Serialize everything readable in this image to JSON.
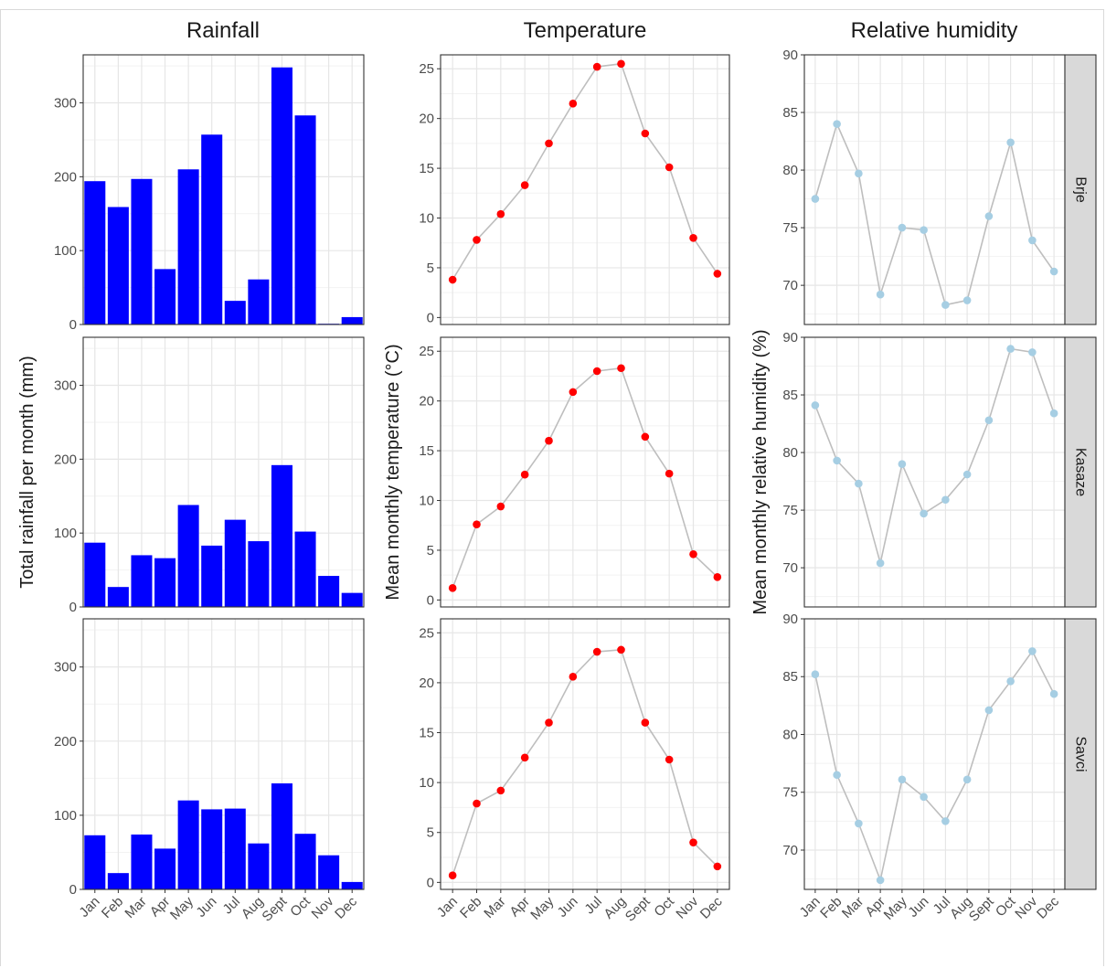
{
  "chart_data": {
    "type": "faceted",
    "months": [
      "Jan",
      "Feb",
      "Mar",
      "Apr",
      "May",
      "Jun",
      "Jul",
      "Aug",
      "Sept",
      "Oct",
      "Nov",
      "Dec"
    ],
    "sites": [
      "Brje",
      "Kasaze",
      "Savci"
    ],
    "columns": [
      {
        "key": "rainfall",
        "title": "Rainfall",
        "type": "bar",
        "ylabel": "Total rainfall per month (mm)",
        "ylim": [
          0,
          365
        ],
        "yticks": [
          0,
          100,
          200,
          300
        ],
        "color": "#0000ff",
        "grid": true,
        "series": [
          {
            "name": "Brje",
            "values": [
              194,
              159,
              197,
              75,
              210,
              257,
              32,
              61,
              348,
              283,
              1,
              10
            ]
          },
          {
            "name": "Kasaze",
            "values": [
              87,
              27,
              70,
              66,
              138,
              83,
              118,
              89,
              192,
              102,
              42,
              19
            ]
          },
          {
            "name": "Savci",
            "values": [
              73,
              22,
              74,
              55,
              120,
              108,
              109,
              62,
              143,
              75,
              46,
              10
            ]
          }
        ]
      },
      {
        "key": "temperature",
        "title": "Temperature",
        "type": "line",
        "ylabel": "Mean monthly temperature (°C)",
        "ylim": [
          -0.7,
          26.4
        ],
        "yticks": [
          0,
          5,
          10,
          15,
          20,
          25
        ],
        "color": "#ff0000",
        "line_color": "#bebebe",
        "grid": true,
        "series": [
          {
            "name": "Brje",
            "values": [
              3.8,
              7.8,
              10.4,
              13.3,
              17.5,
              21.5,
              25.2,
              25.5,
              18.5,
              15.1,
              8.0,
              4.4
            ]
          },
          {
            "name": "Kasaze",
            "values": [
              1.2,
              7.6,
              9.4,
              12.6,
              16.0,
              20.9,
              23.0,
              23.3,
              16.4,
              12.7,
              4.6,
              2.3
            ]
          },
          {
            "name": "Savci",
            "values": [
              0.7,
              7.9,
              9.2,
              12.5,
              16.0,
              20.6,
              23.1,
              23.3,
              16.0,
              12.3,
              4.0,
              1.6
            ]
          }
        ]
      },
      {
        "key": "humidity",
        "title": "Relative humidity",
        "type": "line",
        "ylabel": "Mean monthly relative humidity (%)",
        "ylim": [
          66.6,
          90
        ],
        "yticks": [
          70,
          75,
          80,
          85,
          90
        ],
        "color": "#a6cee3",
        "line_color": "#bebebe",
        "grid": true,
        "series": [
          {
            "name": "Brje",
            "values": [
              77.5,
              84.0,
              79.7,
              69.2,
              75.0,
              74.8,
              68.3,
              68.7,
              76.0,
              82.4,
              73.9,
              71.2
            ]
          },
          {
            "name": "Kasaze",
            "values": [
              84.1,
              79.3,
              77.3,
              70.4,
              79.0,
              74.7,
              75.9,
              78.1,
              82.8,
              89.0,
              88.7,
              83.4
            ]
          },
          {
            "name": "Savci",
            "values": [
              85.2,
              76.5,
              72.3,
              67.4,
              76.1,
              74.6,
              72.5,
              76.1,
              82.1,
              84.6,
              87.2,
              83.5
            ]
          }
        ]
      }
    ]
  }
}
